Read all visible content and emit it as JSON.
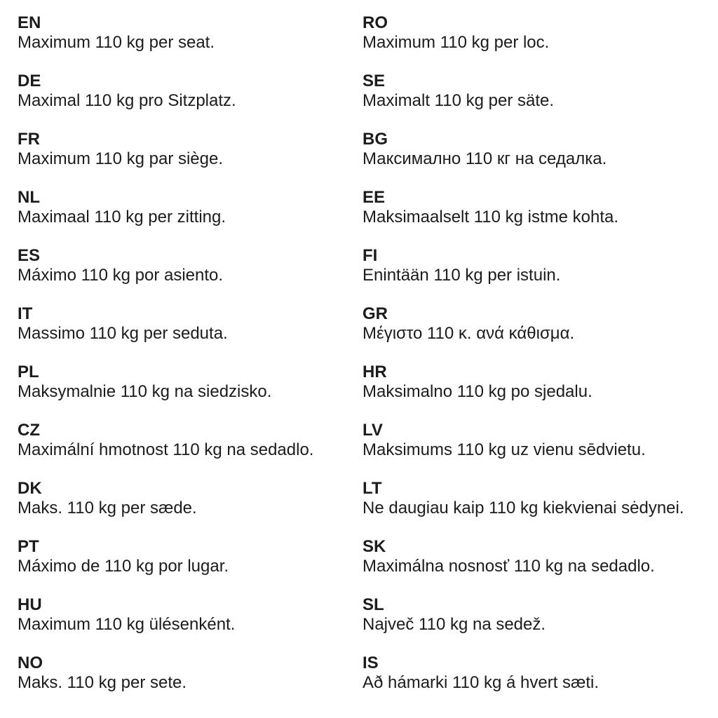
{
  "page": {
    "background_color": "#ffffff",
    "text_color": "#1c1c1c",
    "description": "Multilingual safety instruction: maximum 110 kg per seat"
  },
  "columns": [
    {
      "name": "left",
      "entries": [
        {
          "code": "EN",
          "text": "Maximum 110 kg per seat."
        },
        {
          "code": "DE",
          "text": "Maximal 110 kg pro Sitzplatz."
        },
        {
          "code": "FR",
          "text": "Maximum 110 kg par siège."
        },
        {
          "code": "NL",
          "text": "Maximaal 110 kg per zitting."
        },
        {
          "code": "ES",
          "text": "Máximo 110 kg por asiento."
        },
        {
          "code": "IT",
          "text": "Massimo 110 kg per seduta."
        },
        {
          "code": "PL",
          "text": "Maksymalnie 110 kg na siedzisko."
        },
        {
          "code": "CZ",
          "text": "Maximální hmotnost 110 kg na sedadlo."
        },
        {
          "code": "DK",
          "text": "Maks. 110 kg per sæde."
        },
        {
          "code": "PT",
          "text": "Máximo de 110 kg por lugar."
        },
        {
          "code": "HU",
          "text": "Maximum 110 kg ülésenként."
        },
        {
          "code": "NO",
          "text": "Maks. 110 kg per sete."
        }
      ]
    },
    {
      "name": "right",
      "entries": [
        {
          "code": "RO",
          "text": "Maximum 110 kg per loc."
        },
        {
          "code": "SE",
          "text": "Maximalt 110 kg per säte."
        },
        {
          "code": "BG",
          "text": "Максимално 110 кг на седалка."
        },
        {
          "code": "EE",
          "text": "Maksimaalselt 110 kg istme kohta."
        },
        {
          "code": "FI",
          "text": "Enintään 110 kg per istuin."
        },
        {
          "code": "GR",
          "text": "Μέγιστο 110 κ. ανά κάθισμα."
        },
        {
          "code": "HR",
          "text": "Maksimalno 110 kg po sjedalu."
        },
        {
          "code": "LV",
          "text": "Maksimums 110 kg uz vienu sēdvietu."
        },
        {
          "code": "LT",
          "text": "Ne daugiau kaip 110 kg kiekvienai sėdynei."
        },
        {
          "code": "SK",
          "text": "Maximálna nosnosť 110 kg na sedadlo."
        },
        {
          "code": "SL",
          "text": "Največ 110 kg na sedež."
        },
        {
          "code": "IS",
          "text": "Að hámarki 110 kg á hvert sæti."
        }
      ]
    }
  ]
}
